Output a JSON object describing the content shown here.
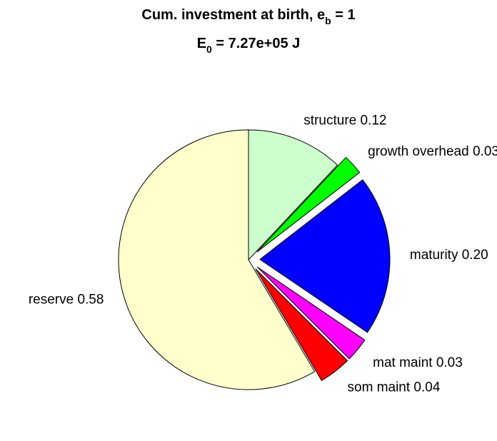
{
  "chart_data": {
    "type": "pie",
    "title": {
      "line1": {
        "text": "Cum. investment at birth, e",
        "subscript": "b",
        "suffix": " = 1"
      },
      "line2": {
        "text": "E",
        "subscript": "0",
        "suffix": " = 7.27e+05 J"
      }
    },
    "slices": [
      {
        "label": "structure 0.12",
        "value": 0.12,
        "color": "#ccffcc",
        "exploded": false
      },
      {
        "label": "growth overhead 0.03",
        "value": 0.025,
        "color": "#00ff00",
        "exploded": true
      },
      {
        "label": "maturity 0.20",
        "value": 0.2,
        "color": "#0000ff",
        "exploded": true
      },
      {
        "label": "mat maint 0.03",
        "value": 0.03,
        "color": "#ff00ff",
        "exploded": true
      },
      {
        "label": "som maint 0.04",
        "value": 0.04,
        "color": "#ff0000",
        "exploded": true
      },
      {
        "label": "reserve 0.58",
        "value": 0.585,
        "color": "#ffffcc",
        "exploded": false
      }
    ],
    "start_angle": "top",
    "direction": "clockwise",
    "background": "#ffffff"
  }
}
